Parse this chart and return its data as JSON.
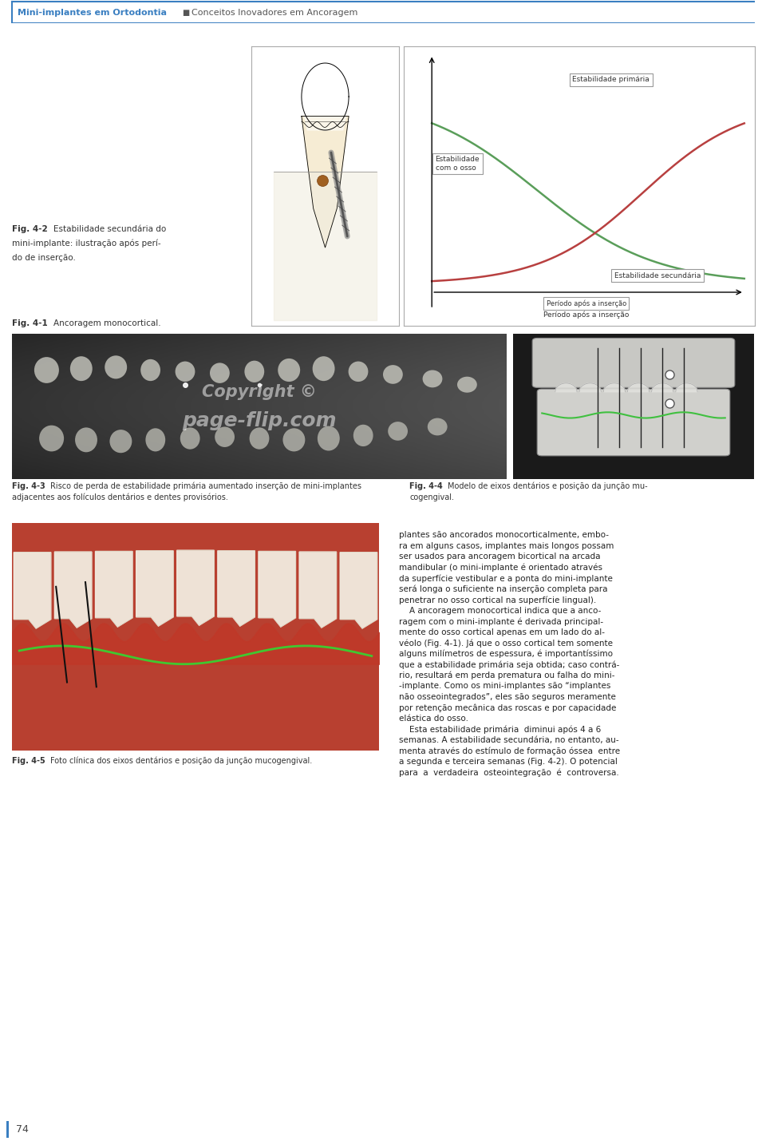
{
  "page_bg": "#ffffff",
  "header_text_bold": "Mini-implantes em Ortodontia",
  "header_separator": "■",
  "header_text_regular": "Conceitos Inovadores em Ancoragem",
  "header_color": "#3a7fc1",
  "header_line_color": "#3a7fc1",
  "page_number": "74",
  "page_number_color": "#555555",
  "left_bar_color": "#3a7fc1",
  "fig41_caption_bold": "Fig. 4-1",
  "fig41_caption": " Ancoragem monocortical.",
  "fig42_caption_bold": "Fig. 4-2",
  "fig42_caption_line1": " Estabilidade secundária do",
  "fig42_caption_line2": "mini-implante: ilustração após perí-",
  "fig42_caption_line3": "do de inserção.",
  "fig43_caption_bold": "Fig. 4-3",
  "fig43_caption_line1": " Risco de perda de estabilidade primária aumentado inserção de mini-implantes",
  "fig43_caption_line2": "adjacentes aos folículos dentários e dentes provisórios.",
  "fig44_caption_bold": "Fig. 4-4",
  "fig44_caption_line1": " Modelo de eixos dentários e posição da junção mu-",
  "fig44_caption_line2": "cogengival.",
  "fig45_caption_bold": "Fig. 4-5",
  "fig45_caption": " Foto clínica dos eixos dentários e posição da junção mucogengival.",
  "body_lines": [
    "plantes são ancorados monocorticalmente, embo-",
    "ra em alguns casos, implantes mais longos possam",
    "ser usados para ancoragem bicortical na arcada",
    "mandibular (o mini-implante é orientado através",
    "da superfície vestibular e a ponta do mini-implante",
    "será longa o suficiente na inserção completa para",
    "penetrar no osso cortical na superfície lingual).",
    "    A ancoragem monocortical indica que a anco-",
    "ragem com o mini-implante é derivada principal-",
    "mente do osso cortical apenas em um lado do al-",
    "véolo (Fig. 4-1). Já que o osso cortical tem somente",
    "alguns milímetros de espessura, é importantíssimo",
    "que a estabilidade primária seja obtida; caso contrá-",
    "rio, resultará em perda prematura ou falha do mini-",
    "-implante. Como os mini-implantes são “implantes",
    "não osseointegrados”, eles são seguros meramente",
    "por retenção mecânica das roscas e por capacidade",
    "elástica do osso.",
    "    Esta estabilidade primária  diminui após 4 a 6",
    "semanas. A estabilidade secundária, no entanto, au-",
    "menta através do estímulo de formação óssea  entre",
    "a segunda e terceira semanas (Fig. 4-2). O potencial",
    "para  a  verdadeira  osteointegração  é  controversa."
  ],
  "graph_label_primary": "Estabilidade primária",
  "graph_label_secondary": "Estabilidade secundária",
  "graph_label_bone_line1": "Estabilidade",
  "graph_label_bone_line2": "com o osso",
  "graph_label_xaxis": "Período após a inserção",
  "graph_color_green": "#5a9e5a",
  "graph_color_red": "#b84040",
  "watermark1": "Copyright ©",
  "watermark2": "page-flip.com"
}
